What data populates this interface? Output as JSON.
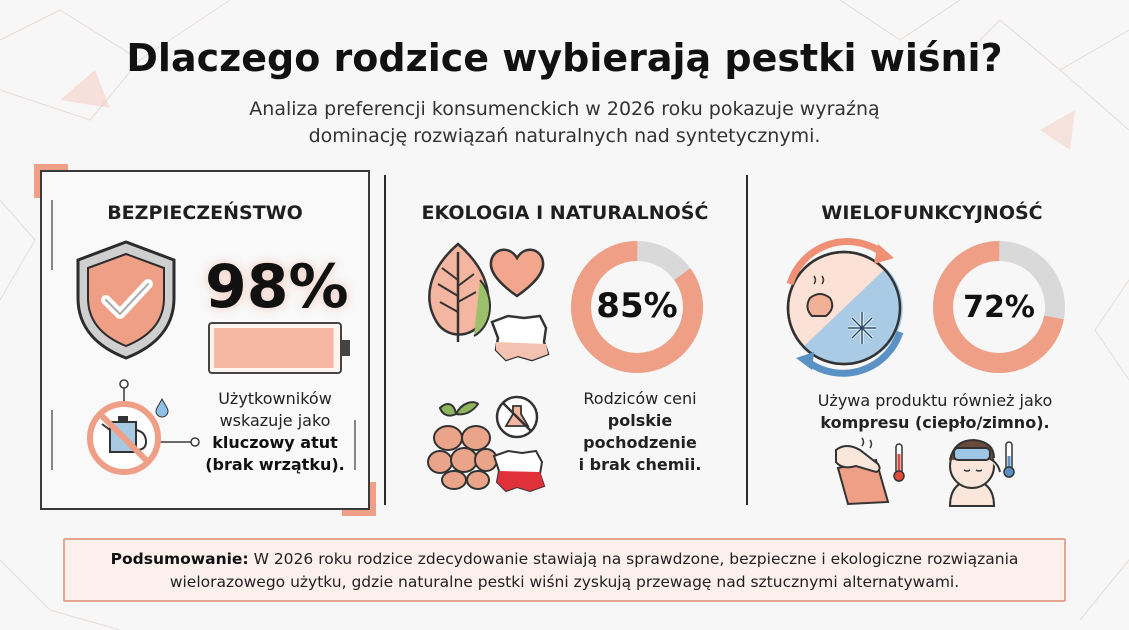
{
  "header": {
    "title": "Dlaczego rodzice wybierają pestki wiśni?",
    "subtitle_line1": "Analiza preferencji konsumenckich w 2026 roku pokazuje wyraźną",
    "subtitle_line2": "dominację rozwiązań naturalnych nad syntetycznymi."
  },
  "colors": {
    "accent": "#ef9f86",
    "accent_light": "#f6c6b4",
    "ring_track": "#d9d9d9",
    "cold_blue": "#9ec7e6",
    "green": "#88b35d"
  },
  "safety": {
    "title": "BEZPIECZEŃSTWO",
    "stat": "98%",
    "percent_value": 98,
    "text_line1": "Użytkowników",
    "text_line2": "wskazuje jako",
    "text_bold1": "kluczowy atut",
    "text_bold2": "(brak wrzątku).",
    "icons": [
      "shield-check-icon",
      "battery-icon",
      "no-boiling-kettle-icon",
      "water-drop-icon"
    ]
  },
  "ecology": {
    "title": "EKOLOGIA I NATURALNOŚĆ",
    "stat": "85%",
    "percent_value": 85,
    "text_line1": "Rodziców ceni",
    "text_bold1": "polskie",
    "text_bold2": "pochodzenie",
    "text_bold3": "i brak chemii.",
    "icons": [
      "leaf-icon",
      "heart-icon",
      "poland-map-icon",
      "cherry-pits-icon",
      "no-chemicals-icon",
      "poland-flag-map-icon"
    ]
  },
  "multifunction": {
    "title": "WIELOFUNKCYJNOŚĆ",
    "stat": "72%",
    "percent_value": 72,
    "text_line1": "Używa produktu również jako",
    "text_bold1": "kompresu (ciepło/zimno).",
    "icons": [
      "hot-cold-cycle-icon",
      "warm-compress-hand-icon",
      "cold-compress-head-icon"
    ]
  },
  "summary": {
    "label": "Podsumowanie:",
    "text_line1": " W 2026 roku rodzice zdecydowanie stawiają na sprawdzone, bezpieczne i ekologiczne rozwiązania",
    "text_line2": "wielorazowego użytku, gdzie naturalne pestki wiśni zyskują przewagę nad sztucznymi alternatywami."
  }
}
